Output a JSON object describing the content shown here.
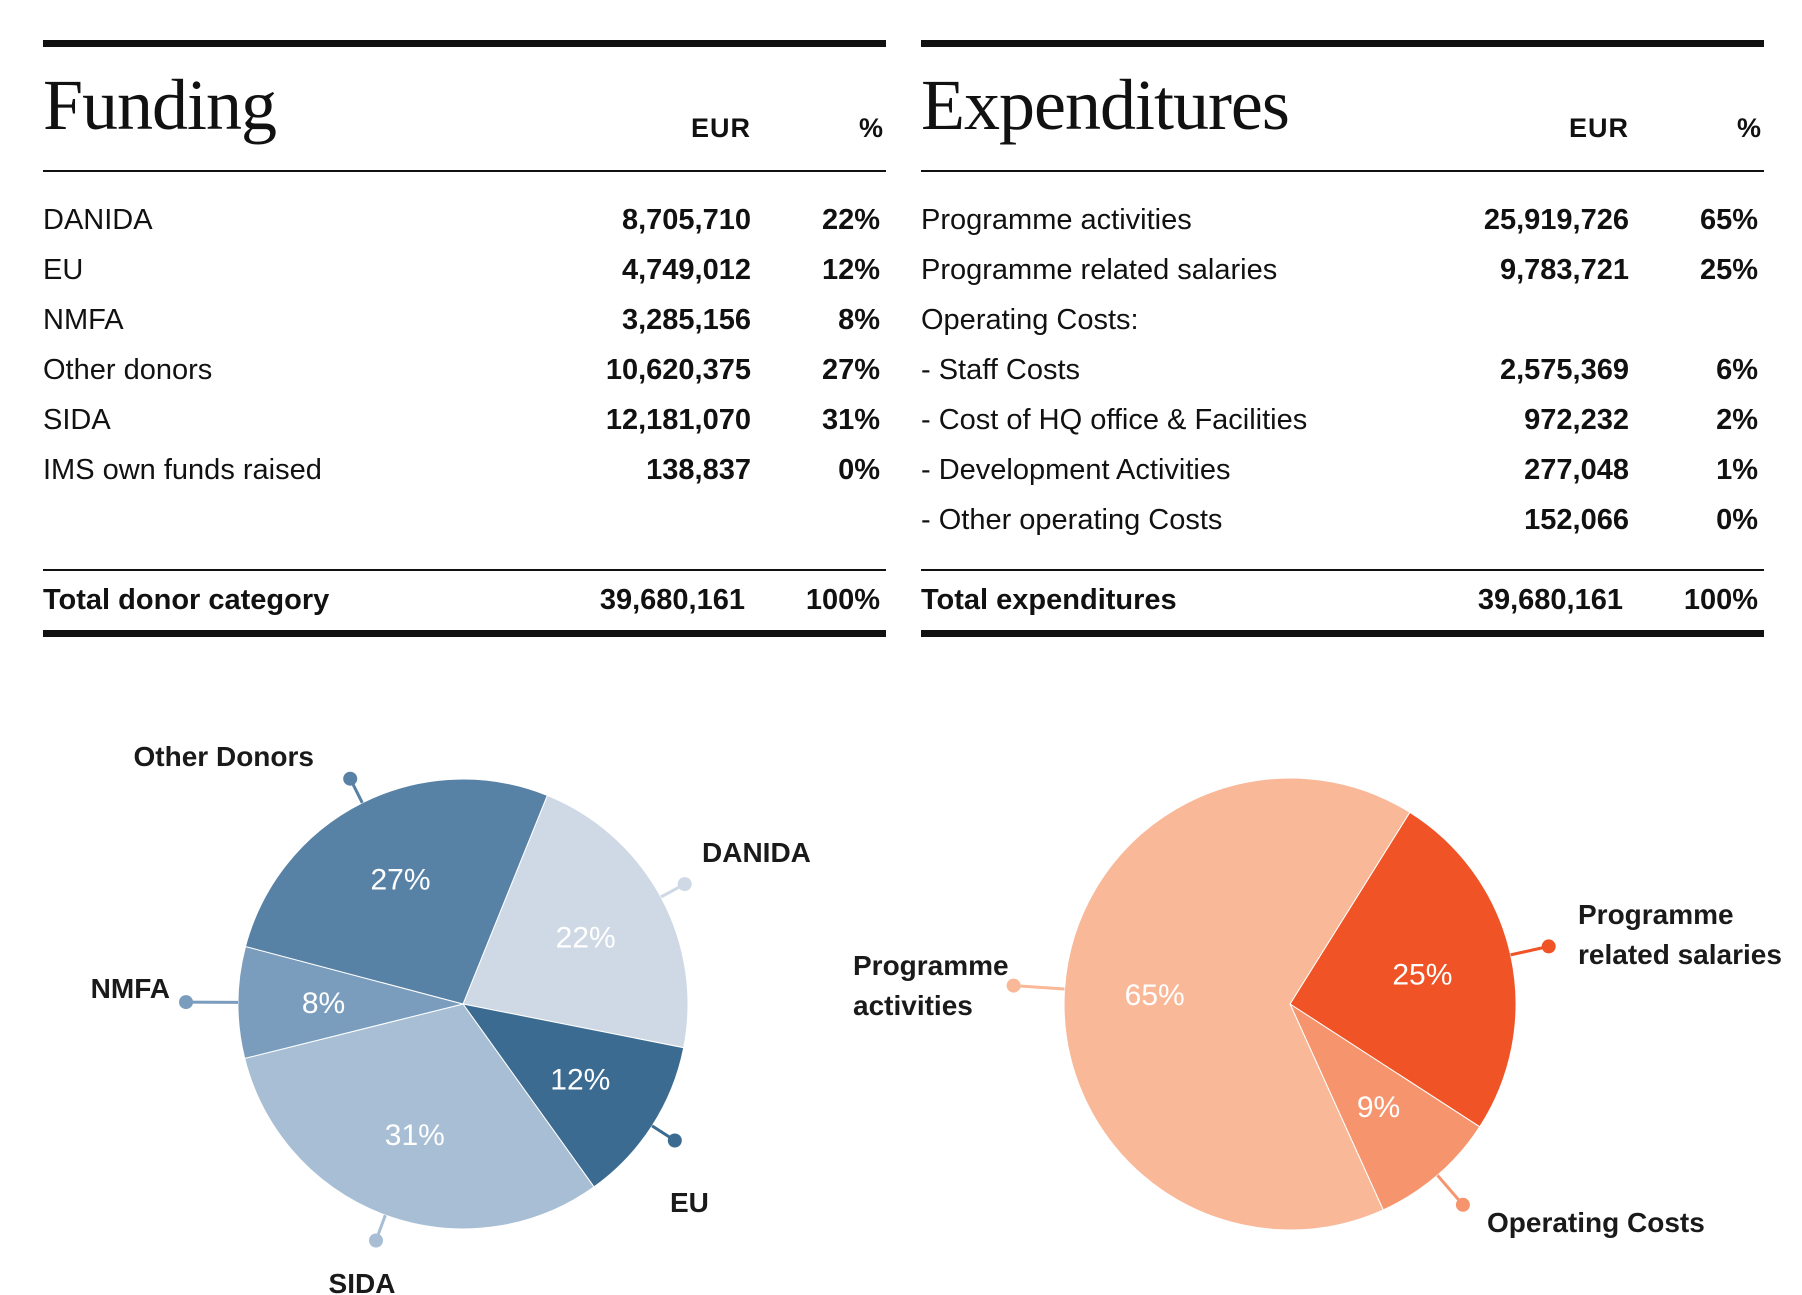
{
  "funding": {
    "title": "Funding",
    "col_eur": "EUR",
    "col_pct": "%",
    "rows": [
      {
        "label": "DANIDA",
        "eur": "8,705,710",
        "pct": "22%"
      },
      {
        "label": "EU",
        "eur": "4,749,012",
        "pct": "12%"
      },
      {
        "label": "NMFA",
        "eur": "3,285,156",
        "pct": "8%"
      },
      {
        "label": "Other donors",
        "eur": "10,620,375",
        "pct": "27%"
      },
      {
        "label": "SIDA",
        "eur": "12,181,070",
        "pct": "31%"
      },
      {
        "label": "IMS own funds raised",
        "eur": "138,837",
        "pct": "0%"
      }
    ],
    "total": {
      "label": "Total donor category",
      "eur": "39,680,161",
      "pct": "100%"
    }
  },
  "expenditures": {
    "title": "Expenditures",
    "col_eur": "EUR",
    "col_pct": "%",
    "rows": [
      {
        "label": "Programme activities",
        "eur": "25,919,726",
        "pct": "65%"
      },
      {
        "label": "Programme related salaries",
        "eur": "9,783,721",
        "pct": "25%"
      },
      {
        "label": "Operating Costs:",
        "eur": "",
        "pct": ""
      },
      {
        "label": "- Staff Costs",
        "eur": "2,575,369",
        "pct": "6%"
      },
      {
        "label": "- Cost of HQ office & Facilities",
        "eur": "972,232",
        "pct": "2%"
      },
      {
        "label": "- Development Activities",
        "eur": "277,048",
        "pct": "1%"
      },
      {
        "label": "- Other operating Costs",
        "eur": "152,066",
        "pct": "0%"
      }
    ],
    "total": {
      "label": "Total expenditures",
      "eur": "39,680,161",
      "pct": "100%"
    }
  },
  "chart_data": [
    {
      "type": "pie",
      "title": "Funding",
      "start_angle_deg": 22,
      "slices": [
        {
          "name": "DANIDA",
          "label": "DANIDA",
          "value": 22,
          "pct_text": "22%",
          "color": "#cfd9e5"
        },
        {
          "name": "EU",
          "label": "EU",
          "value": 12,
          "pct_text": "12%",
          "color": "#3b6b90"
        },
        {
          "name": "SIDA",
          "label": "SIDA",
          "value": 31,
          "pct_text": "31%",
          "color": "#a7bed4"
        },
        {
          "name": "NMFA",
          "label": "NMFA",
          "value": 8,
          "pct_text": "8%",
          "color": "#7b9dbd"
        },
        {
          "name": "Other Donors",
          "label": "Other Donors",
          "value": 27,
          "pct_text": "27%",
          "color": "#5881a6"
        }
      ]
    },
    {
      "type": "pie",
      "title": "Expenditures",
      "start_angle_deg": 32,
      "slices": [
        {
          "name": "Programme related salaries",
          "label": [
            "Programme",
            "related salaries"
          ],
          "value": 25,
          "pct_text": "25%",
          "color": "#ef5326"
        },
        {
          "name": "Operating Costs",
          "label": [
            "Operating Costs"
          ],
          "value": 9,
          "pct_text": "9%",
          "color": "#f6956d"
        },
        {
          "name": "Programme activities",
          "label": [
            "Programme",
            "activities"
          ],
          "value": 65,
          "pct_text": "65%",
          "color": "#f9b898"
        }
      ]
    }
  ]
}
